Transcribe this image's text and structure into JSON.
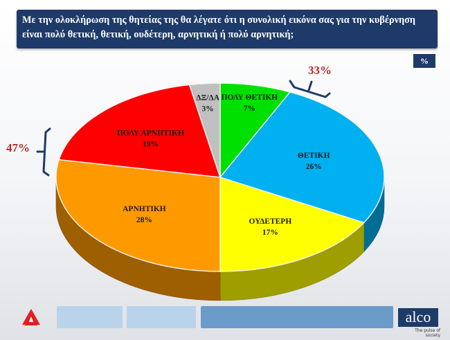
{
  "title": "Με την ολοκλήρωση της θητείας της θα λέγατε ότι η συνολική εικόνα σας για την κυβέρνηση είναι πολύ θετική, θετική, ουδέτερη, αρνητική ή πολύ αρνητική;",
  "unit_badge": "%",
  "chart_data": {
    "type": "pie",
    "title": "Με την ολοκλήρωση της θητείας της θα λέγατε ότι η συνολική εικόνα σας για την κυβέρνηση είναι πολύ θετική, θετική, ουδέτερη, αρνητική ή πολύ αρνητική;",
    "style": "3d",
    "slices": [
      {
        "label": "ΠΟΛΥ ΘΕΤΙΚΗ",
        "value": 7,
        "value_label": "7%",
        "color": "#00e000"
      },
      {
        "label": "ΘΕΤΙΚΗ",
        "value": 26,
        "value_label": "26%",
        "color": "#00b0f0"
      },
      {
        "label": "ΟΥΔΕΤΕΡΗ",
        "value": 17,
        "value_label": "17%",
        "color": "#ffff00"
      },
      {
        "label": "ΑΡΝΗΤΙΚΗ",
        "value": 28,
        "value_label": "28%",
        "color": "#ff9900"
      },
      {
        "label": "ΠΟΛΥ ΑΡΝΗΤΙΚΗ",
        "value": 19,
        "value_label": "19%",
        "color": "#ff0000"
      },
      {
        "label": "ΔΞ/ΔΑ",
        "value": 3,
        "value_label": "3%",
        "color": "#c0c0c0"
      }
    ],
    "annotations": [
      {
        "text": "33%",
        "group": [
          "ΠΟΛΥ ΘΕΤΙΚΗ",
          "ΘΕΤΙΚΗ"
        ]
      },
      {
        "text": "47%",
        "group": [
          "ΑΡΝΗΤΙΚΗ",
          "ΠΟΛΥ ΑΡΝΗΤΙΚΗ"
        ]
      }
    ]
  },
  "footer": {
    "brand": "alco",
    "tagline": "The pulse of society",
    "colors": {
      "bar_light": "#b9d3ea",
      "bar_dark": "#6b9bc9",
      "brand_bg": "#1e3a68"
    }
  }
}
